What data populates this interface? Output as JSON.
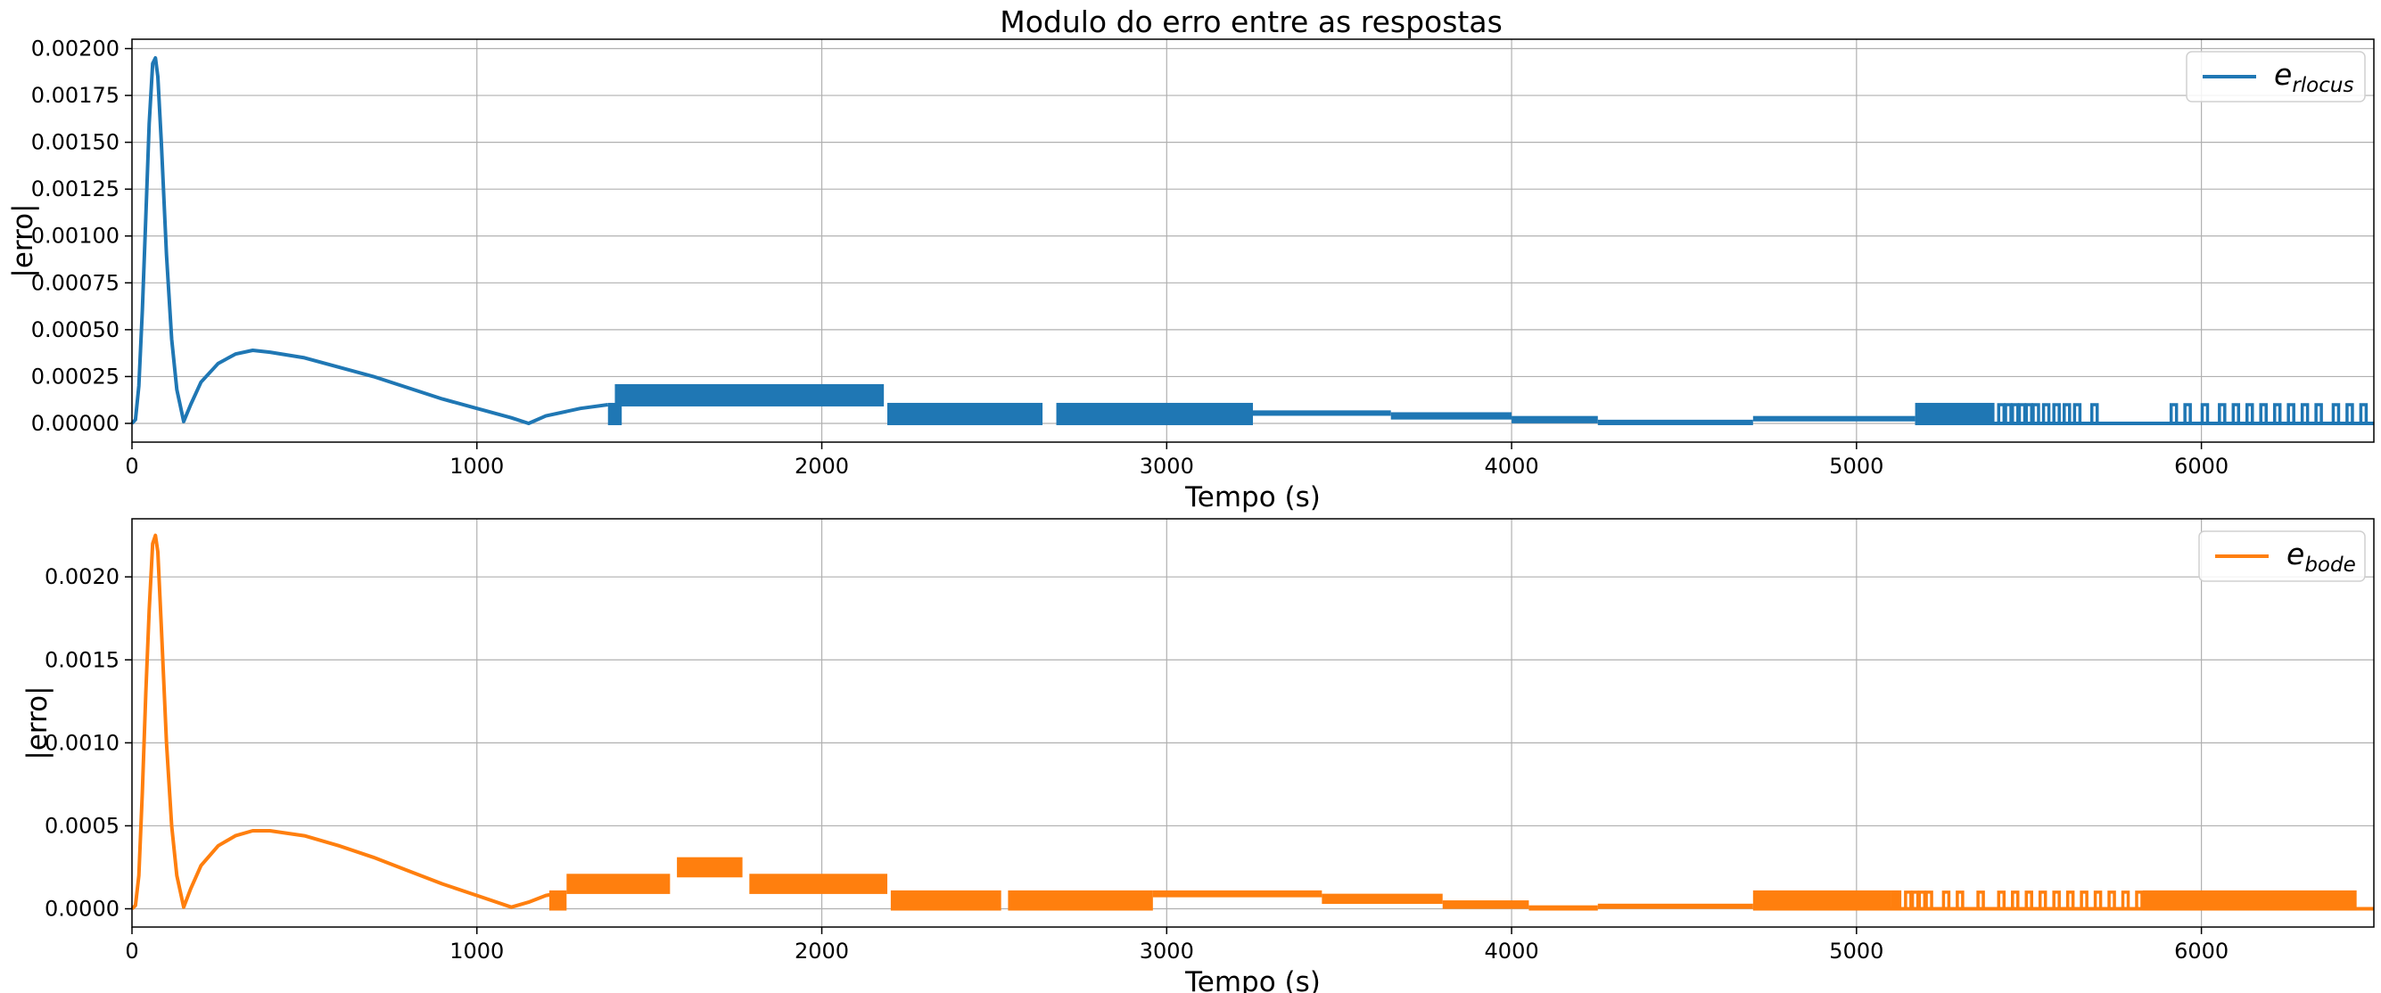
{
  "chart_data": [
    {
      "type": "line",
      "title": "Modulo do erro entre as respostas",
      "xlabel": "Tempo (s)",
      "ylabel": "|erro|",
      "xlim": [
        0,
        6500
      ],
      "ylim": [
        -0.0001,
        0.00205
      ],
      "xticks": [
        0,
        1000,
        2000,
        3000,
        4000,
        5000,
        6000
      ],
      "yticks": [
        0,
        0.00025,
        0.0005,
        0.00075,
        0.001,
        0.00125,
        0.0015,
        0.00175,
        0.002
      ],
      "ytick_labels": [
        "0.00000",
        "0.00025",
        "0.00050",
        "0.00075",
        "0.00100",
        "0.00125",
        "0.00150",
        "0.00175",
        "0.00200"
      ],
      "grid": true,
      "legend_position": "top-right",
      "series": [
        {
          "legend_base": "e",
          "legend_sub": "rlocus",
          "color": "#1f77b4",
          "smooth": [
            [
              0,
              0
            ],
            [
              10,
              2e-05
            ],
            [
              20,
              0.0002
            ],
            [
              30,
              0.0006
            ],
            [
              40,
              0.0011
            ],
            [
              50,
              0.0016
            ],
            [
              60,
              0.00192
            ],
            [
              68,
              0.00195
            ],
            [
              75,
              0.00185
            ],
            [
              85,
              0.0015
            ],
            [
              100,
              0.0009
            ],
            [
              115,
              0.00045
            ],
            [
              130,
              0.00018
            ],
            [
              150,
              1e-05
            ],
            [
              170,
              0.0001
            ],
            [
              200,
              0.00022
            ],
            [
              250,
              0.00032
            ],
            [
              300,
              0.00037
            ],
            [
              350,
              0.00039
            ],
            [
              400,
              0.00038
            ],
            [
              500,
              0.00035
            ],
            [
              600,
              0.0003
            ],
            [
              700,
              0.00025
            ],
            [
              800,
              0.00019
            ],
            [
              900,
              0.00013
            ],
            [
              1000,
              8e-05
            ],
            [
              1100,
              3e-05
            ],
            [
              1150,
              0.0
            ],
            [
              1200,
              4e-05
            ],
            [
              1300,
              8e-05
            ],
            [
              1380,
              0.0001
            ]
          ],
          "bands": [
            [
              1380,
              1420,
              0,
              0.0001
            ],
            [
              1400,
              2180,
              0.0001,
              0.0002
            ],
            [
              2190,
              2640,
              0,
              0.0001
            ],
            [
              2680,
              3250,
              0,
              0.0001
            ],
            [
              3250,
              3650,
              5e-05,
              6e-05
            ],
            [
              3650,
              4000,
              3e-05,
              5e-05
            ],
            [
              4000,
              4250,
              1e-05,
              3e-05
            ],
            [
              4250,
              4700,
              0,
              1e-05
            ],
            [
              4700,
              5170,
              2e-05,
              3e-05
            ]
          ],
          "ticks_range": [
            5170,
            5400,
            0.0001
          ],
          "spikes": [
            5420,
            5440,
            5460,
            5480,
            5500,
            5520,
            5550,
            5580,
            5610,
            5640,
            5690,
            5920,
            5960,
            6010,
            6060,
            6100,
            6140,
            6180,
            6220,
            6260,
            6300,
            6340,
            6390,
            6430,
            6470
          ],
          "spike_height": 0.0001
        }
      ]
    },
    {
      "type": "line",
      "title": "",
      "xlabel": "Tempo (s)",
      "ylabel": "|erro|",
      "xlim": [
        0,
        6500
      ],
      "ylim": [
        -0.00011,
        0.00235
      ],
      "xticks": [
        0,
        1000,
        2000,
        3000,
        4000,
        5000,
        6000
      ],
      "yticks": [
        0,
        0.0005,
        0.001,
        0.0015,
        0.002
      ],
      "ytick_labels": [
        "0.0000",
        "0.0005",
        "0.0010",
        "0.0015",
        "0.0020"
      ],
      "grid": true,
      "legend_position": "top-right",
      "series": [
        {
          "legend_base": "e",
          "legend_sub": "bode",
          "color": "#ff7f0e",
          "smooth": [
            [
              0,
              0
            ],
            [
              10,
              2e-05
            ],
            [
              20,
              0.0002
            ],
            [
              30,
              0.0007
            ],
            [
              40,
              0.0013
            ],
            [
              50,
              0.0018
            ],
            [
              60,
              0.0022
            ],
            [
              68,
              0.00225
            ],
            [
              75,
              0.00215
            ],
            [
              85,
              0.0017
            ],
            [
              100,
              0.001
            ],
            [
              115,
              0.0005
            ],
            [
              130,
              0.0002
            ],
            [
              150,
              1e-05
            ],
            [
              170,
              0.00012
            ],
            [
              200,
              0.00026
            ],
            [
              250,
              0.00038
            ],
            [
              300,
              0.00044
            ],
            [
              350,
              0.00047
            ],
            [
              400,
              0.00047
            ],
            [
              500,
              0.00044
            ],
            [
              600,
              0.00038
            ],
            [
              700,
              0.00031
            ],
            [
              800,
              0.00023
            ],
            [
              900,
              0.00015
            ],
            [
              1000,
              8e-05
            ],
            [
              1100,
              1e-05
            ],
            [
              1150,
              4e-05
            ],
            [
              1200,
              8e-05
            ],
            [
              1250,
              0.0001
            ]
          ],
          "bands": [
            [
              1210,
              1260,
              0,
              0.0001
            ],
            [
              1260,
              1560,
              0.0001,
              0.0002
            ],
            [
              1580,
              1770,
              0.0002,
              0.0003
            ],
            [
              1790,
              2190,
              0.0001,
              0.0002
            ],
            [
              2200,
              2520,
              0,
              0.0001
            ],
            [
              2540,
              2960,
              0,
              0.0001
            ],
            [
              2960,
              3450,
              8e-05,
              0.0001
            ],
            [
              3450,
              3800,
              4e-05,
              8e-05
            ],
            [
              3800,
              4050,
              1e-05,
              4e-05
            ],
            [
              4050,
              4250,
              0,
              1e-05
            ],
            [
              4250,
              4700,
              1e-05,
              2e-05
            ],
            [
              4700,
              5100,
              0,
              0.0001
            ],
            [
              5830,
              6450,
              0,
              0.0001
            ]
          ],
          "ticks_range": [
            5100,
            5130,
            0.0001
          ],
          "spikes": [
            5150,
            5170,
            5190,
            5210,
            5260,
            5300,
            5360,
            5420,
            5460,
            5500,
            5540,
            5580,
            5620,
            5660,
            5700,
            5740,
            5780,
            5820
          ],
          "spike_height": 0.0001
        }
      ]
    }
  ]
}
